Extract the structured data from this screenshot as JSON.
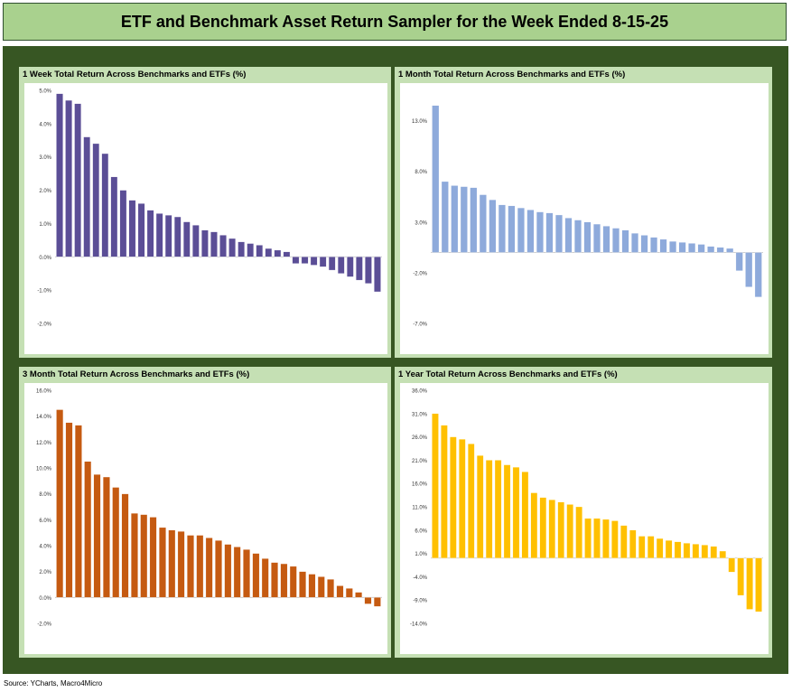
{
  "header": {
    "title": "ETF and Benchmark Asset Return Sampler for the Week Ended 8-15-25"
  },
  "source": "Source: YCharts, Macro4Micro",
  "chart_data": [
    {
      "id": "week",
      "type": "bar",
      "title": "1 Week Total Return Across Benchmarks and ETFs (%)",
      "ylabel": "",
      "xlabel": "",
      "ylim": [
        -2,
        5
      ],
      "yticks": [
        "-2.0%",
        "-1.0%",
        "0.0%",
        "1.0%",
        "2.0%",
        "3.0%",
        "4.0%",
        "5.0%"
      ],
      "color": "#5b4e96",
      "values": [
        4.9,
        4.7,
        4.6,
        3.6,
        3.4,
        3.1,
        2.4,
        2.0,
        1.7,
        1.6,
        1.4,
        1.3,
        1.25,
        1.2,
        1.05,
        0.95,
        0.8,
        0.75,
        0.65,
        0.55,
        0.45,
        0.4,
        0.35,
        0.25,
        0.2,
        0.15,
        -0.2,
        -0.2,
        -0.25,
        -0.3,
        -0.4,
        -0.5,
        -0.6,
        -0.7,
        -0.8,
        -1.05
      ]
    },
    {
      "id": "month",
      "type": "bar",
      "title": "1 Month Total Return Across Benchmarks and ETFs (%)",
      "ylabel": "",
      "xlabel": "",
      "ylim": [
        -7,
        16
      ],
      "yticks": [
        "-7.0%",
        "-2.0%",
        "3.0%",
        "8.0%",
        "13.0%"
      ],
      "color": "#8eaadb",
      "values": [
        14.5,
        7.0,
        6.6,
        6.5,
        6.4,
        5.7,
        5.2,
        4.7,
        4.6,
        4.4,
        4.2,
        4.0,
        3.9,
        3.7,
        3.4,
        3.2,
        3.0,
        2.8,
        2.6,
        2.4,
        2.2,
        1.9,
        1.7,
        1.5,
        1.3,
        1.1,
        1.0,
        0.9,
        0.8,
        0.6,
        0.5,
        0.4,
        -1.8,
        -3.4,
        -4.4
      ]
    },
    {
      "id": "quarter",
      "type": "bar",
      "title": "3 Month Total Return Across Benchmarks and ETFs (%)",
      "ylabel": "",
      "xlabel": "",
      "ylim": [
        -2,
        16
      ],
      "yticks": [
        "-2.0%",
        "0.0%",
        "2.0%",
        "4.0%",
        "6.0%",
        "8.0%",
        "10.0%",
        "12.0%",
        "14.0%",
        "16.0%"
      ],
      "color": "#c55a11",
      "values": [
        14.5,
        13.5,
        13.3,
        10.5,
        9.5,
        9.3,
        8.5,
        8.0,
        6.5,
        6.4,
        6.2,
        5.4,
        5.2,
        5.1,
        4.8,
        4.8,
        4.6,
        4.4,
        4.1,
        3.9,
        3.7,
        3.4,
        3.0,
        2.7,
        2.6,
        2.4,
        2.0,
        1.8,
        1.6,
        1.4,
        0.9,
        0.7,
        0.4,
        -0.5,
        -0.7
      ]
    },
    {
      "id": "year",
      "type": "bar",
      "title": "1 Year Total Return Across Benchmarks and ETFs (%)",
      "ylabel": "",
      "xlabel": "",
      "ylim": [
        -14,
        36
      ],
      "yticks": [
        "-14.0%",
        "-9.0%",
        "-4.0%",
        "1.0%",
        "6.0%",
        "11.0%",
        "16.0%",
        "21.0%",
        "26.0%",
        "31.0%",
        "36.0%"
      ],
      "color": "#ffc000",
      "values": [
        31.0,
        28.5,
        26.0,
        25.5,
        24.5,
        22.0,
        21.0,
        21.0,
        20.0,
        19.5,
        18.5,
        14.0,
        13.0,
        12.5,
        12.0,
        11.5,
        11.0,
        8.5,
        8.5,
        8.3,
        8.0,
        7.0,
        6.0,
        4.7,
        4.7,
        4.2,
        3.8,
        3.5,
        3.2,
        3.0,
        2.8,
        2.5,
        1.5,
        -3.0,
        -8.0,
        -11.0,
        -11.5
      ]
    }
  ]
}
